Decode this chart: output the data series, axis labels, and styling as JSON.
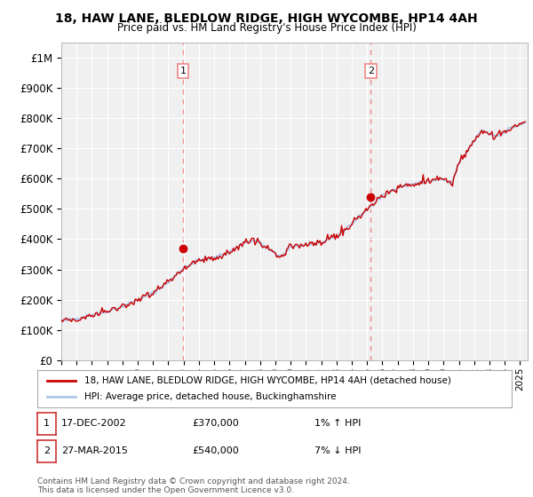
{
  "title": "18, HAW LANE, BLEDLOW RIDGE, HIGH WYCOMBE, HP14 4AH",
  "subtitle": "Price paid vs. HM Land Registry's House Price Index (HPI)",
  "ylim": [
    0,
    1050000
  ],
  "yticks": [
    0,
    100000,
    200000,
    300000,
    400000,
    500000,
    600000,
    700000,
    800000,
    900000,
    1000000
  ],
  "ytick_labels": [
    "£0",
    "£100K",
    "£200K",
    "£300K",
    "£400K",
    "£500K",
    "£600K",
    "£700K",
    "£800K",
    "£900K",
    "£1M"
  ],
  "hpi_color": "#aec6e8",
  "price_color": "#cc0000",
  "dashed_color": "#ee8888",
  "background_color": "#ffffff",
  "plot_bg_color": "#f0f0f0",
  "transaction1": {
    "date": "17-DEC-2002",
    "price": 370000,
    "hpi_pct": "1%",
    "hpi_dir": "↑",
    "label": "1",
    "year": 2002.96
  },
  "transaction2": {
    "date": "27-MAR-2015",
    "price": 540000,
    "hpi_pct": "7%",
    "hpi_dir": "↓",
    "label": "2",
    "year": 2015.23
  },
  "legend_line1": "18, HAW LANE, BLEDLOW RIDGE, HIGH WYCOMBE, HP14 4AH (detached house)",
  "legend_line2": "HPI: Average price, detached house, Buckinghamshire",
  "footnote": "Contains HM Land Registry data © Crown copyright and database right 2024.\nThis data is licensed under the Open Government Licence v3.0.",
  "xmin": 1995,
  "xmax": 2025.5,
  "anchors_hpi": {
    "1995.0": 130000,
    "1996.0": 138000,
    "1997.0": 150000,
    "1998.0": 162000,
    "1999.0": 178000,
    "2000.0": 200000,
    "2001.0": 222000,
    "2002.0": 258000,
    "2003.0": 305000,
    "2004.0": 332000,
    "2005.0": 338000,
    "2006.0": 358000,
    "2007.0": 390000,
    "2007.75": 395000,
    "2008.5": 370000,
    "2009.0": 350000,
    "2009.5": 345000,
    "2010.0": 375000,
    "2011.0": 382000,
    "2012.0": 388000,
    "2013.0": 408000,
    "2014.0": 452000,
    "2015.0": 498000,
    "2016.0": 542000,
    "2017.0": 572000,
    "2018.0": 582000,
    "2019.0": 592000,
    "2020.0": 598000,
    "2020.5": 580000,
    "2021.0": 648000,
    "2022.0": 725000,
    "2022.5": 760000,
    "2023.0": 748000,
    "2023.5": 740000,
    "2024.0": 755000,
    "2024.5": 770000,
    "2025.0": 778000,
    "2025.4": 785000
  }
}
